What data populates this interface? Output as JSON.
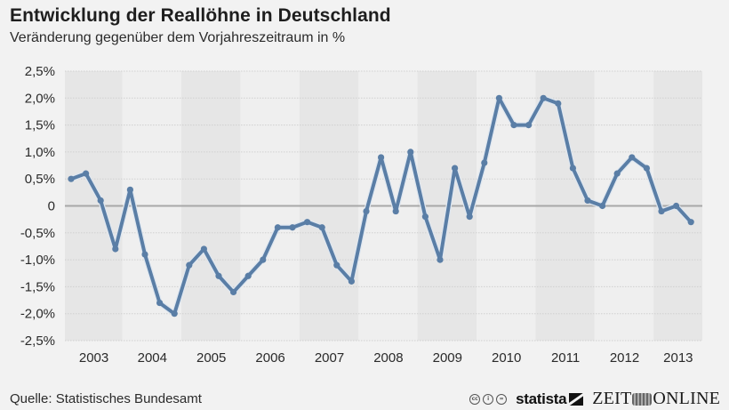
{
  "header": {
    "title": "Entwicklung der Reallöhne in Deutschland",
    "subtitle": "Veränderung gegenüber dem Vorjahreszeitraum in %"
  },
  "footer": {
    "source": "Quelle: Statistisches Bundesamt",
    "license_icons": [
      "cc-icon",
      "by-icon",
      "nd-icon"
    ],
    "license_glyphs": [
      "cc",
      "i",
      "="
    ],
    "statista_label": "statista",
    "zeit_left": "ZEIT",
    "zeit_right": "ONLINE"
  },
  "colors": {
    "background": "#f2f2f2",
    "band": "#e6e6e6",
    "line": "#5a7ea6",
    "zero_line": "#a8a8a8",
    "grid": "#d0d0d0"
  },
  "chart_data": {
    "type": "line",
    "title": "Entwicklung der Reallöhne in Deutschland",
    "subtitle": "Veränderung gegenüber dem Vorjahreszeitraum in %",
    "xlabel": "",
    "ylabel": "",
    "ylim": [
      -2.5,
      2.5
    ],
    "yticks": [
      2.5,
      2.0,
      1.5,
      1.0,
      0.5,
      0,
      -0.5,
      -1.0,
      -1.5,
      -2.0,
      -2.5
    ],
    "ytick_labels": [
      "2,5%",
      "2,0%",
      "1,5%",
      "1,0%",
      "0,5%",
      "0",
      "-0,5%",
      "-1,0%",
      "-1,5%",
      "-2,0%",
      "-2,5%"
    ],
    "categories": [
      "2003",
      "2004",
      "2005",
      "2006",
      "2007",
      "2008",
      "2009",
      "2010",
      "2011",
      "2012",
      "2013"
    ],
    "periods_per_category": 4,
    "grid": true,
    "legend": "none",
    "series": [
      {
        "name": "Reallöhne",
        "x": [
          "2003 Q1",
          "2003 Q2",
          "2003 Q3",
          "2003 Q4",
          "2004 Q1",
          "2004 Q2",
          "2004 Q3",
          "2004 Q4",
          "2005 Q1",
          "2005 Q2",
          "2005 Q3",
          "2005 Q4",
          "2006 Q1",
          "2006 Q2",
          "2006 Q3",
          "2006 Q4",
          "2007 Q1",
          "2007 Q2",
          "2007 Q3",
          "2007 Q4",
          "2008 Q1",
          "2008 Q2",
          "2008 Q3",
          "2008 Q4",
          "2009 Q1",
          "2009 Q2",
          "2009 Q3",
          "2009 Q4",
          "2010 Q1",
          "2010 Q2",
          "2010 Q3",
          "2010 Q4",
          "2011 Q1",
          "2011 Q2",
          "2011 Q3",
          "2011 Q4",
          "2012 Q1",
          "2012 Q2",
          "2012 Q3",
          "2012 Q4",
          "2013 Q1",
          "2013 Q2",
          "2013 Q3"
        ],
        "values": [
          0.5,
          0.6,
          0.1,
          -0.8,
          0.3,
          -0.9,
          -1.8,
          -2.0,
          -1.1,
          -0.8,
          -1.3,
          -1.6,
          -1.3,
          -1.0,
          -0.4,
          -0.4,
          -0.3,
          -0.4,
          -1.1,
          -1.4,
          -0.1,
          0.9,
          -0.1,
          1.0,
          -0.2,
          -1.0,
          0.7,
          -0.2,
          0.8,
          2.0,
          1.5,
          1.5,
          2.0,
          1.9,
          0.7,
          0.1,
          0.0,
          0.6,
          0.9,
          0.7,
          -0.1,
          0.0,
          -0.3
        ]
      }
    ]
  }
}
